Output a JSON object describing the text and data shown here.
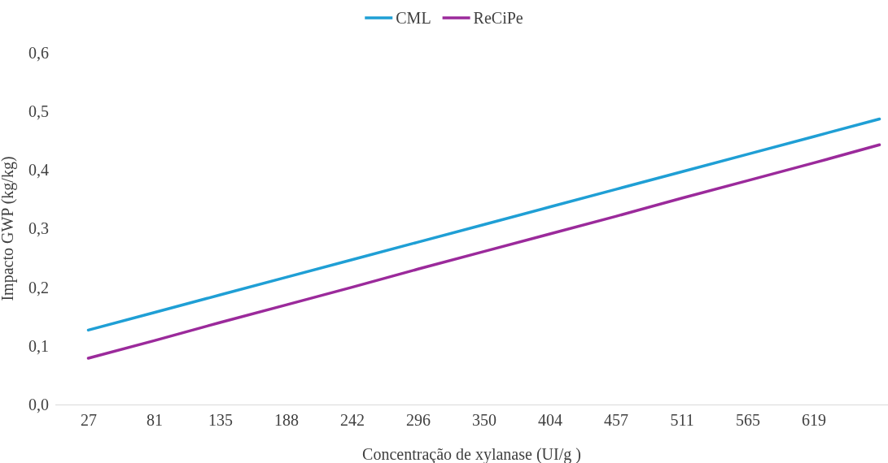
{
  "chart_data": {
    "type": "line",
    "xlabel": "Concentração de xylanase (UI/g )",
    "ylabel": "Impacto GWP (kg/kg)",
    "categories": [
      "27",
      "81",
      "135",
      "188",
      "242",
      "296",
      "350",
      "404",
      "457",
      "511",
      "565",
      "619",
      null
    ],
    "series": [
      {
        "name": "CML",
        "color": "#1f9fd5",
        "values": [
          0.127,
          0.157,
          0.187,
          0.217,
          0.247,
          0.277,
          0.307,
          0.337,
          0.367,
          0.397,
          0.427,
          0.457,
          0.487
        ]
      },
      {
        "name": "ReCiPe",
        "color": "#9b2a9b",
        "values": [
          0.079,
          0.109,
          0.14,
          0.17,
          0.2,
          0.231,
          0.261,
          0.291,
          0.321,
          0.352,
          0.382,
          0.412,
          0.443
        ]
      }
    ],
    "ylim": [
      0,
      0.6
    ],
    "yticks": [
      {
        "value": 0,
        "label": "0,0"
      },
      {
        "value": 0.1,
        "label": "0,1"
      },
      {
        "value": 0.2,
        "label": "0,2"
      },
      {
        "value": 0.3,
        "label": "0,3"
      },
      {
        "value": 0.4,
        "label": "0,4"
      },
      {
        "value": 0.5,
        "label": "0,5"
      },
      {
        "value": 0.6,
        "label": "0,6"
      }
    ],
    "grid": false,
    "legend": "top",
    "marker": "none",
    "line_style": "solid"
  }
}
